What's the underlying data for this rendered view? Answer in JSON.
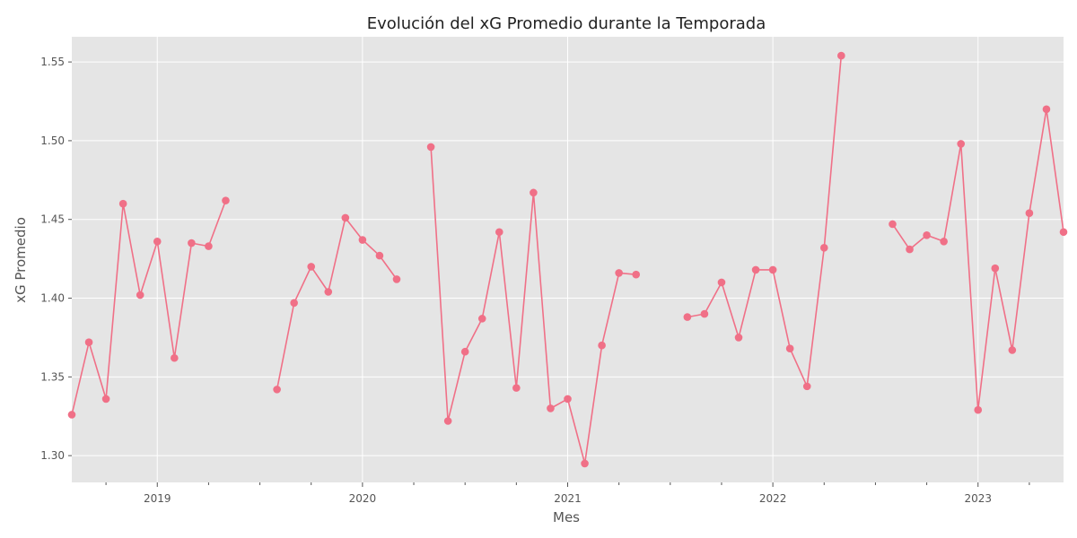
{
  "chart_data": {
    "type": "line",
    "title": "Evolución del xG Promedio durante la Temporada",
    "xlabel": "Mes",
    "ylabel": "xG Promedio",
    "ylim": [
      1.283,
      1.566
    ],
    "xlim": [
      "2018-08-01",
      "2023-06-01"
    ],
    "grid": true,
    "line_color": "#f07087",
    "background_color": "#e5e5e5",
    "y_ticks": [
      1.3,
      1.35,
      1.4,
      1.45,
      1.5,
      1.55
    ],
    "y_tick_labels": [
      "1.30",
      "1.35",
      "1.40",
      "1.45",
      "1.50",
      "1.55"
    ],
    "x_ticks": [
      "2019-01-01",
      "2020-01-01",
      "2021-01-01",
      "2022-01-01",
      "2023-01-01"
    ],
    "x_tick_labels": [
      "2019",
      "2020",
      "2021",
      "2022",
      "2023"
    ],
    "segments": [
      {
        "x": [
          "2018-08",
          "2018-09",
          "2018-10",
          "2018-11",
          "2018-12",
          "2019-01",
          "2019-02",
          "2019-03",
          "2019-04",
          "2019-05"
        ],
        "y": [
          1.326,
          1.372,
          1.336,
          1.46,
          1.402,
          1.436,
          1.362,
          1.435,
          1.433,
          1.462
        ]
      },
      {
        "x": [
          "2019-08",
          "2019-09",
          "2019-10",
          "2019-11",
          "2019-12",
          "2020-01",
          "2020-02",
          "2020-03"
        ],
        "y": [
          1.342,
          1.397,
          1.42,
          1.404,
          1.451,
          1.437,
          1.427,
          1.412
        ]
      },
      {
        "x": [
          "2020-05",
          "2020-06",
          "2020-07",
          "2020-08",
          "2020-09",
          "2020-10",
          "2020-11",
          "2020-12",
          "2021-01",
          "2021-02",
          "2021-03",
          "2021-04",
          "2021-05"
        ],
        "y": [
          1.496,
          1.322,
          1.366,
          1.387,
          1.442,
          1.343,
          1.467,
          1.33,
          1.336,
          1.295,
          1.37,
          1.416,
          1.415
        ]
      },
      {
        "x": [
          "2021-08",
          "2021-09",
          "2021-10",
          "2021-11",
          "2021-12",
          "2022-01",
          "2022-02",
          "2022-03",
          "2022-04",
          "2022-05"
        ],
        "y": [
          1.388,
          1.39,
          1.41,
          1.375,
          1.418,
          1.418,
          1.368,
          1.344,
          1.432,
          1.554
        ]
      },
      {
        "x": [
          "2022-08",
          "2022-09",
          "2022-10",
          "2022-11",
          "2022-12",
          "2023-01",
          "2023-02",
          "2023-03",
          "2023-04",
          "2023-05",
          "2023-06"
        ],
        "y": [
          1.447,
          1.431,
          1.44,
          1.436,
          1.498,
          1.329,
          1.419,
          1.367,
          1.454,
          1.52,
          1.442
        ]
      }
    ]
  }
}
